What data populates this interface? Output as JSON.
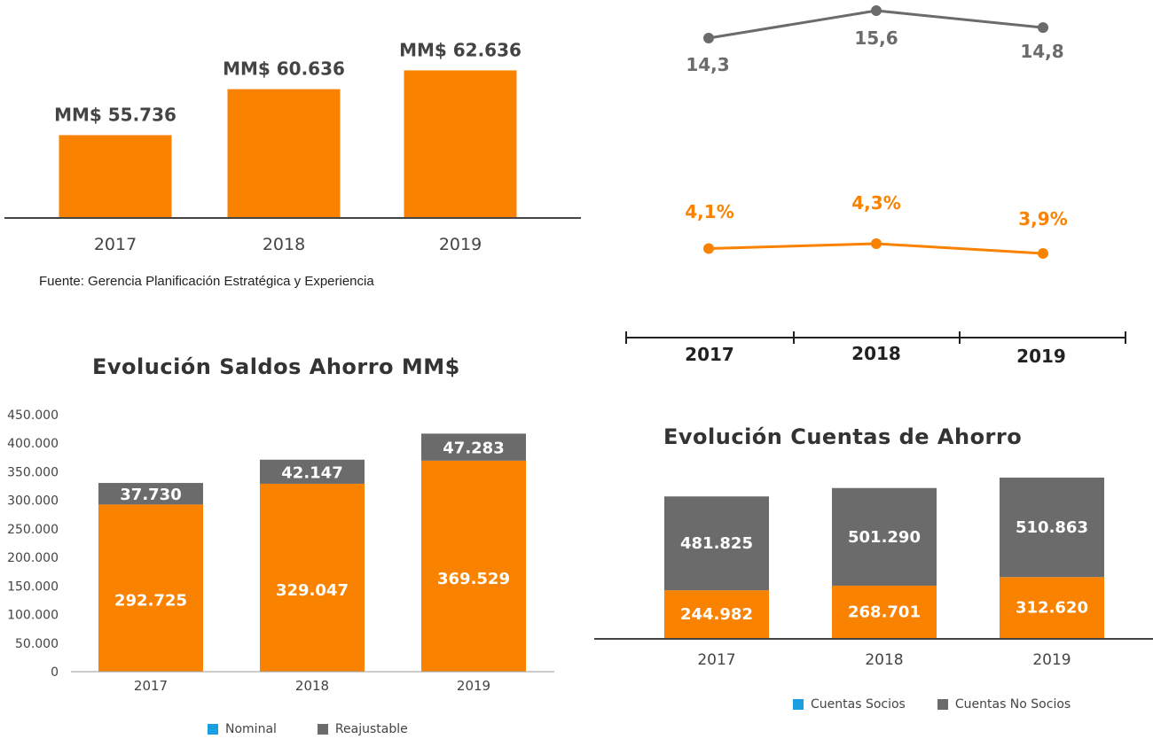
{
  "colors": {
    "orange": "#f98200",
    "gray": "#6b6b6b",
    "blue": "#1a9fe0",
    "axis": "#555555"
  },
  "source_note": "Fuente: Gerencia Planificación Estratégica y Experiencia",
  "chart_data": [
    {
      "type": "bar",
      "categories": [
        "2017",
        "2018",
        "2019"
      ],
      "values": [
        55736,
        60636,
        62636
      ],
      "data_labels": [
        "MM$ 55.736",
        "MM$ 60.636",
        "MM$ 62.636"
      ],
      "title": "",
      "xlabel": "",
      "ylabel": "",
      "ylim": [
        47000,
        64000
      ],
      "grid": false
    },
    {
      "type": "line",
      "categories": [
        "2017",
        "2018",
        "2019"
      ],
      "series": [
        {
          "values": [
            14.3,
            15.6,
            14.8
          ],
          "labels": [
            "14,3",
            "15,6",
            "14,8"
          ],
          "color": "#6b6b6b"
        },
        {
          "values": [
            4.1,
            4.3,
            3.9
          ],
          "labels": [
            "4,1%",
            "4,3%",
            "3,9%"
          ],
          "color": "#f98200"
        }
      ],
      "title": "",
      "xlabel": "",
      "ylabel": "",
      "grid": false
    },
    {
      "type": "bar",
      "stacked": true,
      "title": "Evolución Saldos Ahorro MM$",
      "categories": [
        "2017",
        "2018",
        "2019"
      ],
      "series": [
        {
          "name": "Nominal",
          "values": [
            292725,
            329047,
            369529
          ],
          "labels": [
            "292.725",
            "329.047",
            "369.529"
          ],
          "color": "#f98200",
          "legend_color": "#1a9fe0"
        },
        {
          "name": "Reajustable",
          "values": [
            37730,
            42147,
            47283
          ],
          "labels": [
            "37.730",
            "42.147",
            "47.283"
          ],
          "color": "#6b6b6b",
          "legend_color": "#6b6b6b"
        }
      ],
      "yticks": [
        "0",
        "50.000",
        "100.000",
        "150.000",
        "200.000",
        "250.000",
        "300.000",
        "350.000",
        "400.000",
        "450.000"
      ],
      "ylim": [
        0,
        450000
      ],
      "xlabel": "",
      "ylabel": "",
      "grid": false,
      "legend": "bottom"
    },
    {
      "type": "bar",
      "stacked": true,
      "title": "Evolución Cuentas de Ahorro",
      "categories": [
        "2017",
        "2018",
        "2019"
      ],
      "series": [
        {
          "name": "Cuentas Socios",
          "values": [
            244982,
            268701,
            312620
          ],
          "labels": [
            "244.982",
            "268.701",
            "312.620"
          ],
          "color": "#f98200",
          "legend_color": "#1a9fe0"
        },
        {
          "name": "Cuentas No Socios",
          "values": [
            481825,
            501290,
            510863
          ],
          "labels": [
            "481.825",
            "501.290",
            "510.863"
          ],
          "color": "#6b6b6b",
          "legend_color": "#6b6b6b"
        }
      ],
      "xlabel": "",
      "ylabel": "",
      "grid": false,
      "legend": "bottom"
    }
  ]
}
